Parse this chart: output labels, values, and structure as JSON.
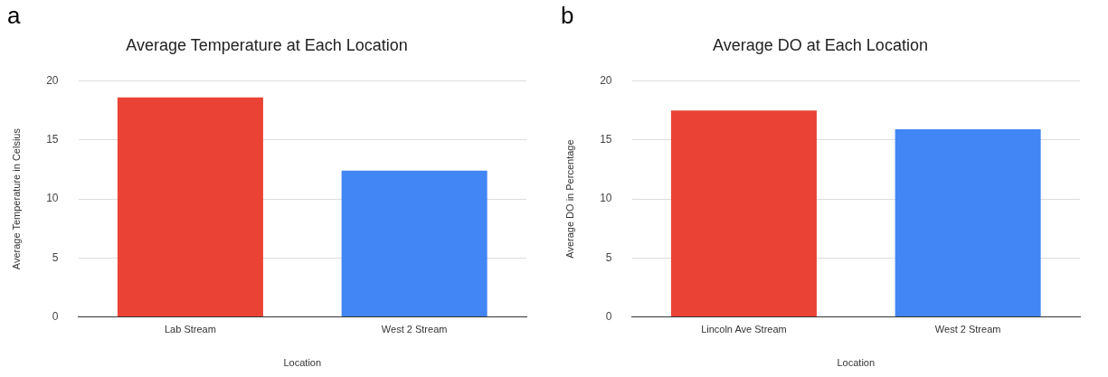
{
  "chart_data": [
    {
      "type": "bar",
      "title": "Average Temperature at Each Location",
      "xlabel": "Location",
      "ylabel": "Average Temperature in Celsius",
      "annotations": [
        "a"
      ],
      "categories": [
        "Lab Stream",
        "West 2 Stream"
      ],
      "values": [
        18.6,
        12.4
      ],
      "colors": [
        "#ea4335",
        "#4285f4"
      ],
      "ylim": [
        0,
        20
      ],
      "yticks": [
        0,
        5,
        10,
        15,
        20
      ],
      "grid": "y",
      "legend": false
    },
    {
      "type": "bar",
      "title": "Average DO at Each Location",
      "xlabel": "Location",
      "ylabel": "Average DO in Percentage",
      "annotations": [
        "b"
      ],
      "categories": [
        "Lincoln Ave Stream",
        "West 2 Stream"
      ],
      "values": [
        17.5,
        15.9
      ],
      "colors": [
        "#ea4335",
        "#4285f4"
      ],
      "ylim": [
        0,
        20
      ],
      "yticks": [
        0,
        5,
        10,
        15,
        20
      ],
      "grid": "y",
      "legend": false
    }
  ]
}
